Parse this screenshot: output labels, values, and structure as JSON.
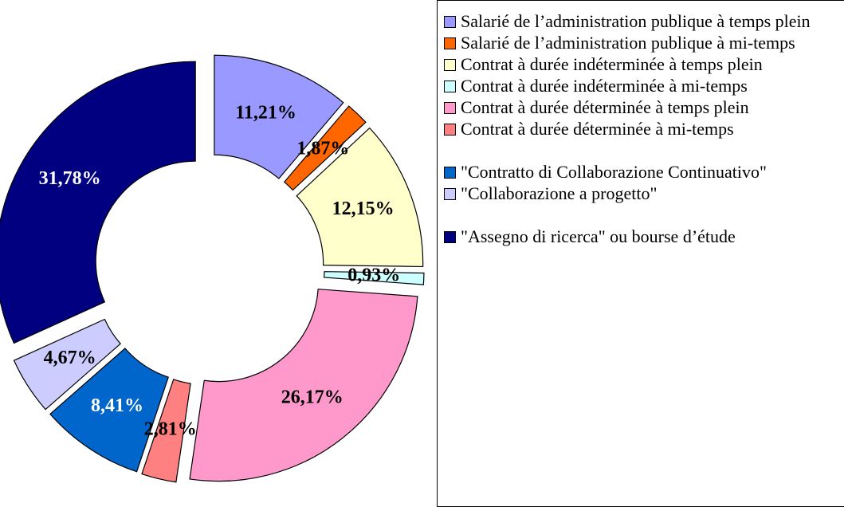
{
  "chart_data": {
    "type": "donut",
    "categories": [
      "Salarié de l’administration publique à temps plein",
      "Salarié de l’administration publique à mi-temps",
      "Contrat à durée indéterminée à temps plein",
      "Contrat à durée indéterminée à mi-temps",
      "Contrat à durée déterminée à temps plein",
      "Contrat à durée déterminée à mi-temps",
      "\"Contratto di Collaborazione Continuativo\"",
      "\"Collaborazione a progetto\"",
      "\"Assegno di ricerca\" ou bourse d’étude"
    ],
    "values": [
      11.21,
      1.87,
      12.15,
      0.93,
      26.17,
      2.81,
      8.41,
      4.67,
      31.78
    ],
    "value_labels": [
      "11,21%",
      "1,87%",
      "12,15%",
      "0,93%",
      "26,17%",
      "2,81%",
      "8,41%",
      "4,67%",
      "31,78%"
    ],
    "colors": [
      "#9999ff",
      "#ff6600",
      "#ffffcc",
      "#ccffff",
      "#ff99cc",
      "#ff8080",
      "#0066cc",
      "#ccccff",
      "#000080"
    ],
    "legend": "right"
  }
}
